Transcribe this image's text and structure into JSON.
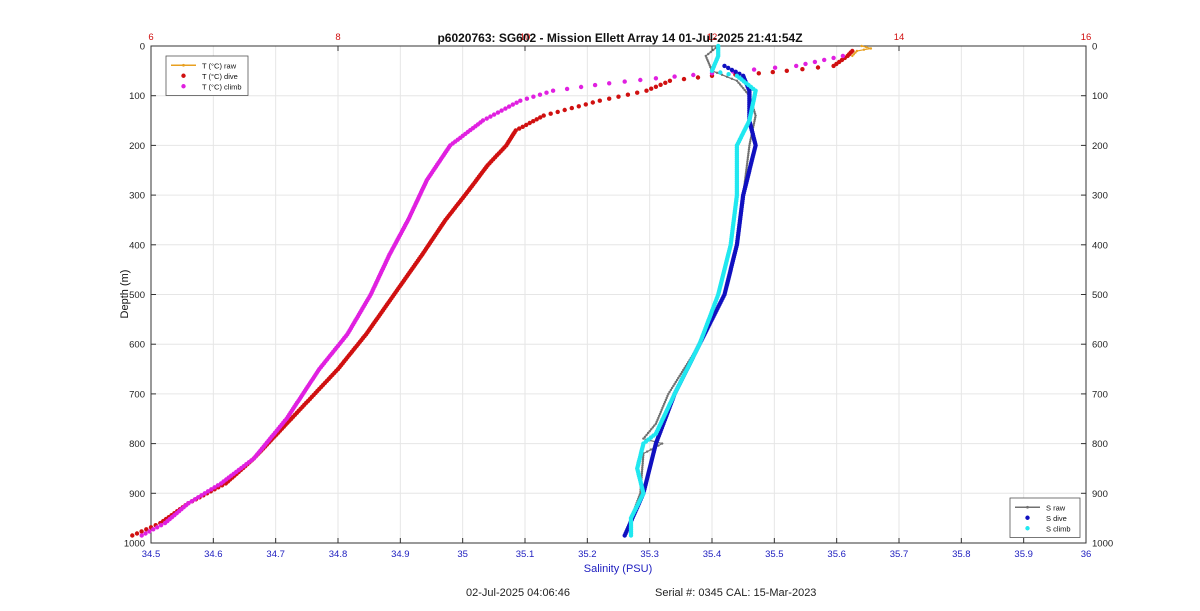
{
  "chart_data": {
    "type": "scatter",
    "title": "p6020763: SG602 - Mission Ellett Array 14 01-Jul-2025 21:41:54Z",
    "xlabel": "Salinity (PSU)",
    "ylabel": "Depth (m)",
    "x_bottom": {
      "range": [
        34.5,
        36
      ],
      "ticks": [
        34.5,
        34.6,
        34.7,
        34.8,
        34.9,
        35,
        35.1,
        35.2,
        35.3,
        35.4,
        35.5,
        35.6,
        35.7,
        35.8,
        35.9,
        36
      ],
      "tick_labels": [
        "34.5",
        "34.6",
        "34.7",
        "34.8",
        "34.9",
        "35",
        "35.1",
        "35.2",
        "35.3",
        "35.4",
        "35.5",
        "35.6",
        "35.7",
        "35.8",
        "35.9",
        "36"
      ],
      "color": "#2020c0"
    },
    "x_top": {
      "range": [
        6,
        16
      ],
      "ticks": [
        6,
        8,
        10,
        12,
        14,
        16
      ],
      "tick_labels": [
        "6",
        "8",
        "10",
        "12",
        "14",
        "16"
      ],
      "color": "#d01010"
    },
    "y": {
      "range": [
        0,
        1000
      ],
      "reversed": true,
      "ticks": [
        0,
        100,
        200,
        300,
        400,
        500,
        600,
        700,
        800,
        900,
        1000
      ],
      "tick_labels": [
        "0",
        "100",
        "200",
        "300",
        "400",
        "500",
        "600",
        "700",
        "800",
        "900",
        "1000"
      ]
    },
    "grid": true,
    "legend_temperature": {
      "placement": "top-left",
      "entries": [
        {
          "label": "T (°C) raw",
          "color": "#e8a020",
          "style": "line"
        },
        {
          "label": "T (°C) dive",
          "color": "#d01010",
          "style": "dot"
        },
        {
          "label": "T (°C) climb",
          "color": "#e020e0",
          "style": "dot"
        }
      ]
    },
    "legend_salinity": {
      "placement": "bottom-right",
      "entries": [
        {
          "label": "S raw",
          "color": "#707070",
          "style": "line"
        },
        {
          "label": "S dive",
          "color": "#1010c0",
          "style": "dot"
        },
        {
          "label": "S climb",
          "color": "#20e8f0",
          "style": "dot"
        }
      ]
    },
    "series": [
      {
        "axis": "temperature",
        "color": "#e8a020",
        "points": [
          [
            13.6,
            0
          ],
          [
            13.7,
            5
          ],
          [
            13.55,
            10
          ],
          [
            13.5,
            20
          ]
        ]
      },
      {
        "axis": "temperature",
        "color": "#d01010",
        "points": [
          [
            13.5,
            10
          ],
          [
            13.45,
            20
          ],
          [
            13.3,
            40
          ],
          [
            12.8,
            50
          ],
          [
            12.5,
            55
          ],
          [
            12.0,
            60
          ],
          [
            11.55,
            70
          ],
          [
            11.3,
            90
          ],
          [
            10.8,
            110
          ],
          [
            10.2,
            140
          ],
          [
            9.9,
            170
          ],
          [
            9.8,
            200
          ],
          [
            9.6,
            240
          ],
          [
            9.4,
            290
          ],
          [
            9.15,
            350
          ],
          [
            8.9,
            420
          ],
          [
            8.6,
            500
          ],
          [
            8.3,
            580
          ],
          [
            8.0,
            650
          ],
          [
            7.5,
            750
          ],
          [
            7.1,
            830
          ],
          [
            6.8,
            880
          ],
          [
            6.4,
            920
          ],
          [
            6.1,
            960
          ],
          [
            5.8,
            985
          ]
        ]
      },
      {
        "axis": "temperature",
        "color": "#e020e0",
        "points": [
          [
            13.4,
            20
          ],
          [
            12.9,
            40
          ],
          [
            12.0,
            55
          ],
          [
            11.4,
            65
          ],
          [
            10.9,
            75
          ],
          [
            10.3,
            90
          ],
          [
            9.95,
            110
          ],
          [
            9.55,
            150
          ],
          [
            9.2,
            200
          ],
          [
            8.95,
            270
          ],
          [
            8.75,
            350
          ],
          [
            8.55,
            420
          ],
          [
            8.35,
            500
          ],
          [
            8.1,
            580
          ],
          [
            7.8,
            650
          ],
          [
            7.45,
            750
          ],
          [
            7.1,
            830
          ],
          [
            6.75,
            880
          ],
          [
            6.4,
            920
          ],
          [
            6.15,
            960
          ],
          [
            5.9,
            985
          ]
        ]
      },
      {
        "axis": "salinity",
        "color": "#707070",
        "points": [
          [
            35.41,
            0
          ],
          [
            35.39,
            20
          ],
          [
            35.4,
            50
          ],
          [
            35.44,
            70
          ],
          [
            35.46,
            100
          ],
          [
            35.47,
            140
          ],
          [
            35.46,
            200
          ],
          [
            35.45,
            300
          ],
          [
            35.44,
            400
          ],
          [
            35.42,
            500
          ],
          [
            35.38,
            600
          ],
          [
            35.33,
            700
          ],
          [
            35.31,
            760
          ],
          [
            35.29,
            790
          ],
          [
            35.32,
            800
          ],
          [
            35.29,
            820
          ],
          [
            35.285,
            900
          ],
          [
            35.27,
            950
          ],
          [
            35.26,
            985
          ]
        ]
      },
      {
        "axis": "salinity",
        "color": "#1010c0",
        "points": [
          [
            35.42,
            40
          ],
          [
            35.45,
            60
          ],
          [
            35.46,
            90
          ],
          [
            35.46,
            150
          ],
          [
            35.47,
            200
          ],
          [
            35.45,
            300
          ],
          [
            35.44,
            400
          ],
          [
            35.42,
            500
          ],
          [
            35.38,
            600
          ],
          [
            35.34,
            700
          ],
          [
            35.31,
            800
          ],
          [
            35.29,
            900
          ],
          [
            35.26,
            985
          ]
        ]
      },
      {
        "axis": "salinity",
        "color": "#20e8f0",
        "points": [
          [
            35.41,
            0
          ],
          [
            35.41,
            20
          ],
          [
            35.4,
            50
          ],
          [
            35.44,
            60
          ],
          [
            35.47,
            90
          ],
          [
            35.46,
            150
          ],
          [
            35.44,
            200
          ],
          [
            35.44,
            300
          ],
          [
            35.43,
            400
          ],
          [
            35.41,
            500
          ],
          [
            35.38,
            600
          ],
          [
            35.34,
            700
          ],
          [
            35.31,
            780
          ],
          [
            35.29,
            800
          ],
          [
            35.28,
            850
          ],
          [
            35.29,
            900
          ],
          [
            35.27,
            950
          ],
          [
            35.27,
            985
          ]
        ]
      }
    ]
  },
  "footer": {
    "timestamp": "02-Jul-2025 04:06:46",
    "serial": "Serial #: 0345  CAL: 15-Mar-2023"
  }
}
